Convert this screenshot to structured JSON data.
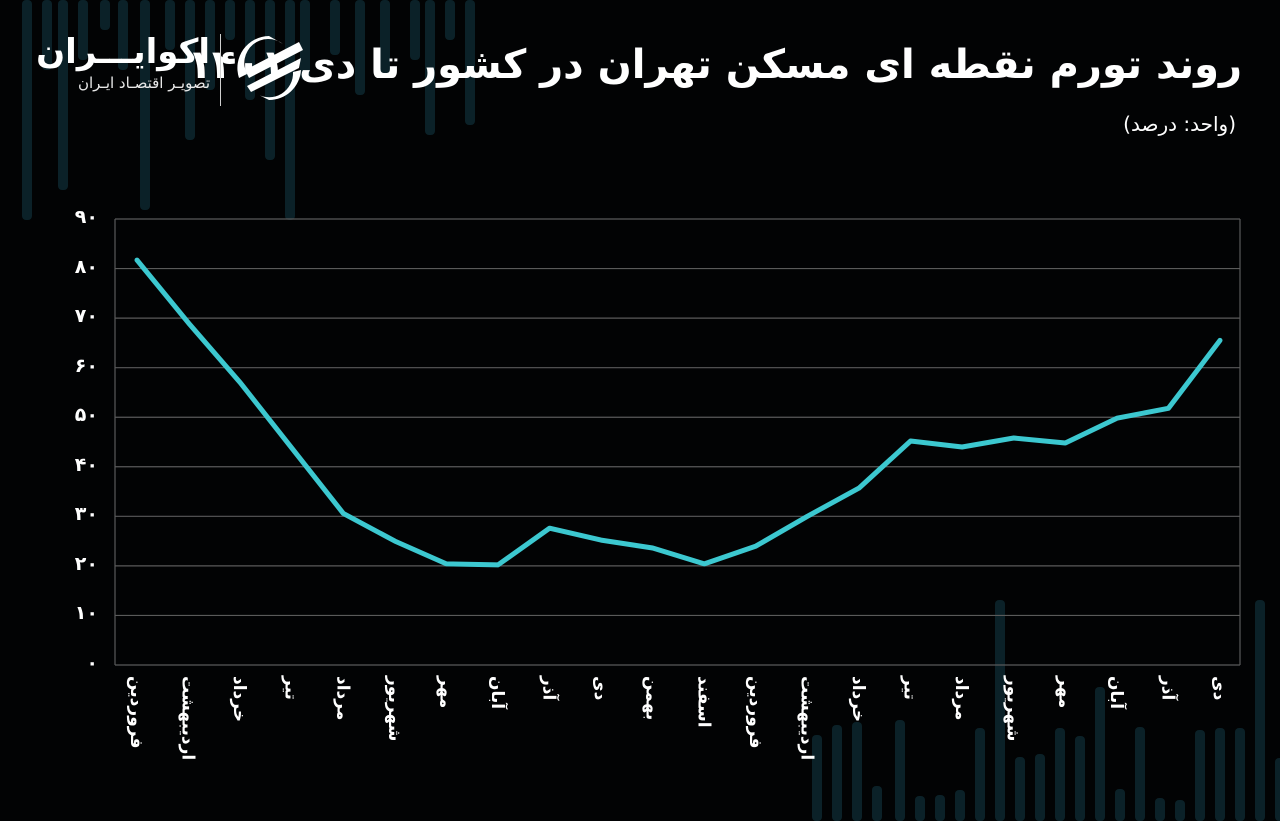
{
  "header": {
    "title": "روند تورم نقطه ای مسکن تهران در کشور تا دی ۱۴۰۱",
    "subtitle": "(واحد: درصد)"
  },
  "logo": {
    "name": "اکوایـــران",
    "tagline": "تصویـر اقتصـاد ایـران",
    "icon": "ecoiran-logo-icon"
  },
  "colors": {
    "background": "#020304",
    "line": "#3cc8d0",
    "grid": "#5a5a5a",
    "text": "#ffffff",
    "decor_bars": "#0b2128"
  },
  "chart_data": {
    "type": "line",
    "title": "روند تورم نقطه ای مسکن تهران در کشور تا دی ۱۴۰۱",
    "subtitle": "(واحد: درصد)",
    "xlabel": "",
    "ylabel": "درصد",
    "ylim": [
      0,
      90
    ],
    "yticks": [
      0,
      10,
      20,
      30,
      40,
      50,
      60,
      70,
      80,
      90
    ],
    "ytick_labels": [
      "۰",
      "۱۰",
      "۲۰",
      "۳۰",
      "۴۰",
      "۵۰",
      "۶۰",
      "۷۰",
      "۸۰",
      "۹۰"
    ],
    "grid": true,
    "legend": null,
    "categories": [
      "فروردین",
      "اردیبهشت",
      "خرداد",
      "تیر",
      "مرداد",
      "شهریور",
      "مهر",
      "آبان",
      "آذر",
      "دی",
      "بهمن",
      "اسفند",
      "فروردین",
      "اردیبهشت",
      "خرداد",
      "تیر",
      "مرداد",
      "شهریور",
      "مهر",
      "آبان",
      "آذر",
      "دی"
    ],
    "series": [
      {
        "name": "تورم نقطه ای مسکن تهران",
        "values": [
          81.7,
          69,
          57,
          43.8,
          30.6,
          25,
          20.4,
          20.2,
          27.6,
          25.2,
          23.6,
          20.4,
          24,
          30,
          35.7,
          45.2,
          44,
          45.8,
          44.8,
          49.8,
          51.8,
          65.5
        ]
      }
    ]
  }
}
